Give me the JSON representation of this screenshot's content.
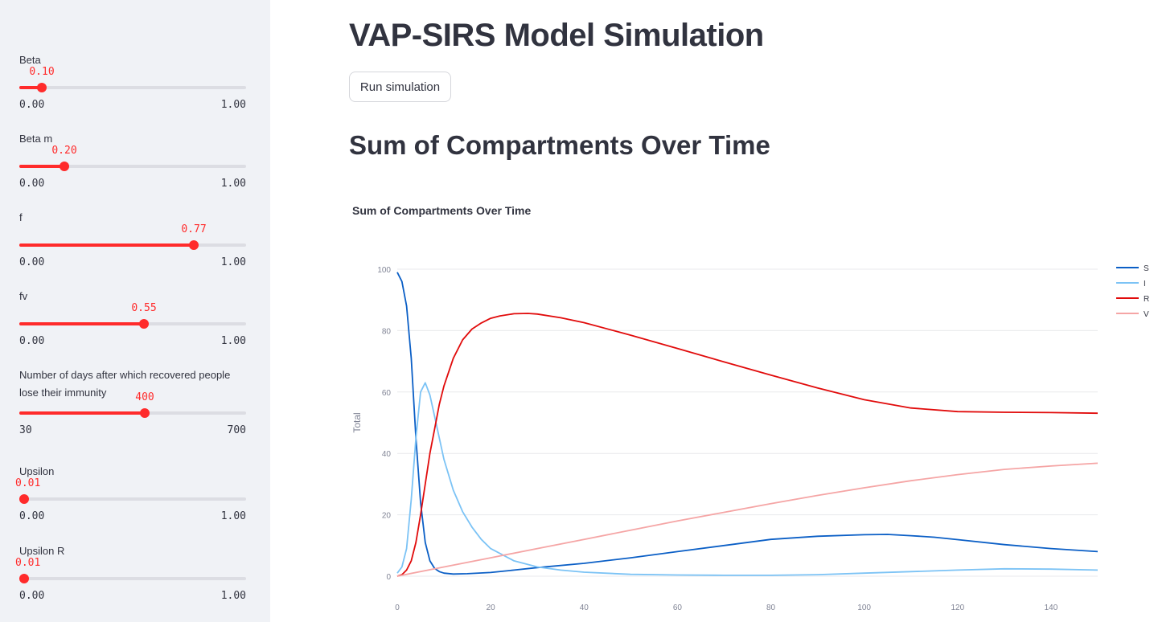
{
  "sidebar": {
    "sliders": [
      {
        "label": "Beta",
        "value": "0.10",
        "min": "0.00",
        "max": "1.00",
        "fraction": 0.1
      },
      {
        "label": "Beta m",
        "value": "0.20",
        "min": "0.00",
        "max": "1.00",
        "fraction": 0.2
      },
      {
        "label": "f",
        "value": "0.77",
        "min": "0.00",
        "max": "1.00",
        "fraction": 0.77
      },
      {
        "label": "fv",
        "value": "0.55",
        "min": "0.00",
        "max": "1.00",
        "fraction": 0.55
      },
      {
        "label": "Number of days after which recovered people lose their immunity",
        "value": "400",
        "min": "30",
        "max": "700",
        "fraction": 0.5522
      },
      {
        "label": "Upsilon",
        "value": "0.01",
        "min": "0.00",
        "max": "1.00",
        "fraction": 0.0
      },
      {
        "label": "Upsilon R",
        "value": "0.01",
        "min": "0.00",
        "max": "1.00",
        "fraction": 0.0
      }
    ]
  },
  "main": {
    "title": "VAP-SIRS Model Simulation",
    "run_button": "Run simulation",
    "section_title": "Sum of Compartments Over Time"
  },
  "colors": {
    "accent": "#ff2b2b",
    "S": "#0b5fc6",
    "I": "#7cc3f5",
    "R": "#e10b0b",
    "V": "#f5a5a5"
  },
  "chart_data": {
    "type": "line",
    "title": "Sum of Compartments Over Time",
    "xlabel": "",
    "ylabel": "Total",
    "xlim": [
      0,
      150
    ],
    "ylim": [
      0,
      100
    ],
    "xticks": [
      0,
      20,
      40,
      60,
      80,
      100,
      120,
      140
    ],
    "yticks": [
      0,
      20,
      40,
      60,
      80,
      100
    ],
    "grid": true,
    "legend": "top-right",
    "series": [
      {
        "name": "S",
        "color": "#0b5fc6",
        "x": [
          0,
          1,
          2,
          3,
          4,
          5,
          6,
          7,
          8,
          9,
          10,
          12,
          15,
          20,
          25,
          30,
          40,
          50,
          60,
          70,
          80,
          90,
          100,
          105,
          110,
          115,
          120,
          130,
          140,
          150
        ],
        "y": [
          99,
          96,
          88,
          71,
          45,
          24,
          11,
          5,
          2.5,
          1.5,
          1,
          0.7,
          0.8,
          1.2,
          2,
          2.8,
          4.2,
          6,
          8,
          10,
          12,
          13,
          13.5,
          13.6,
          13.2,
          12.7,
          11.9,
          10.3,
          9,
          8
        ]
      },
      {
        "name": "I",
        "color": "#7cc3f5",
        "x": [
          0,
          1,
          2,
          3,
          4,
          5,
          6,
          7,
          8,
          9,
          10,
          12,
          14,
          16,
          18,
          20,
          25,
          30,
          35,
          40,
          50,
          60,
          70,
          80,
          90,
          100,
          110,
          120,
          130,
          140,
          150
        ],
        "y": [
          1,
          3,
          9,
          25,
          45,
          60,
          63,
          59,
          52,
          45,
          38,
          28,
          21,
          16,
          12,
          9,
          5,
          3,
          2,
          1.3,
          0.6,
          0.4,
          0.3,
          0.3,
          0.5,
          1,
          1.5,
          2,
          2.4,
          2.3,
          2
        ]
      },
      {
        "name": "R",
        "color": "#e10b0b",
        "x": [
          0,
          1,
          2,
          3,
          4,
          5,
          6,
          7,
          8,
          9,
          10,
          12,
          14,
          16,
          18,
          20,
          22,
          25,
          28,
          30,
          35,
          40,
          50,
          60,
          70,
          80,
          90,
          100,
          110,
          120,
          130,
          140,
          150
        ],
        "y": [
          0,
          0.5,
          2,
          5,
          11,
          20,
          30,
          40,
          48,
          56,
          62,
          71,
          77,
          80.5,
          82.5,
          84,
          84.8,
          85.5,
          85.6,
          85.4,
          84.2,
          82.6,
          78.5,
          74.2,
          69.8,
          65.5,
          61.3,
          57.5,
          54.8,
          53.6,
          53.4,
          53.3,
          53.1
        ]
      },
      {
        "name": "V",
        "color": "#f5a5a5",
        "x": [
          0,
          10,
          20,
          30,
          40,
          50,
          60,
          70,
          80,
          90,
          100,
          110,
          120,
          130,
          140,
          150
        ],
        "y": [
          0,
          3,
          6,
          9,
          12,
          15,
          18,
          20.8,
          23.6,
          26.3,
          28.8,
          31.1,
          33.1,
          34.8,
          35.9,
          36.8
        ]
      }
    ]
  }
}
